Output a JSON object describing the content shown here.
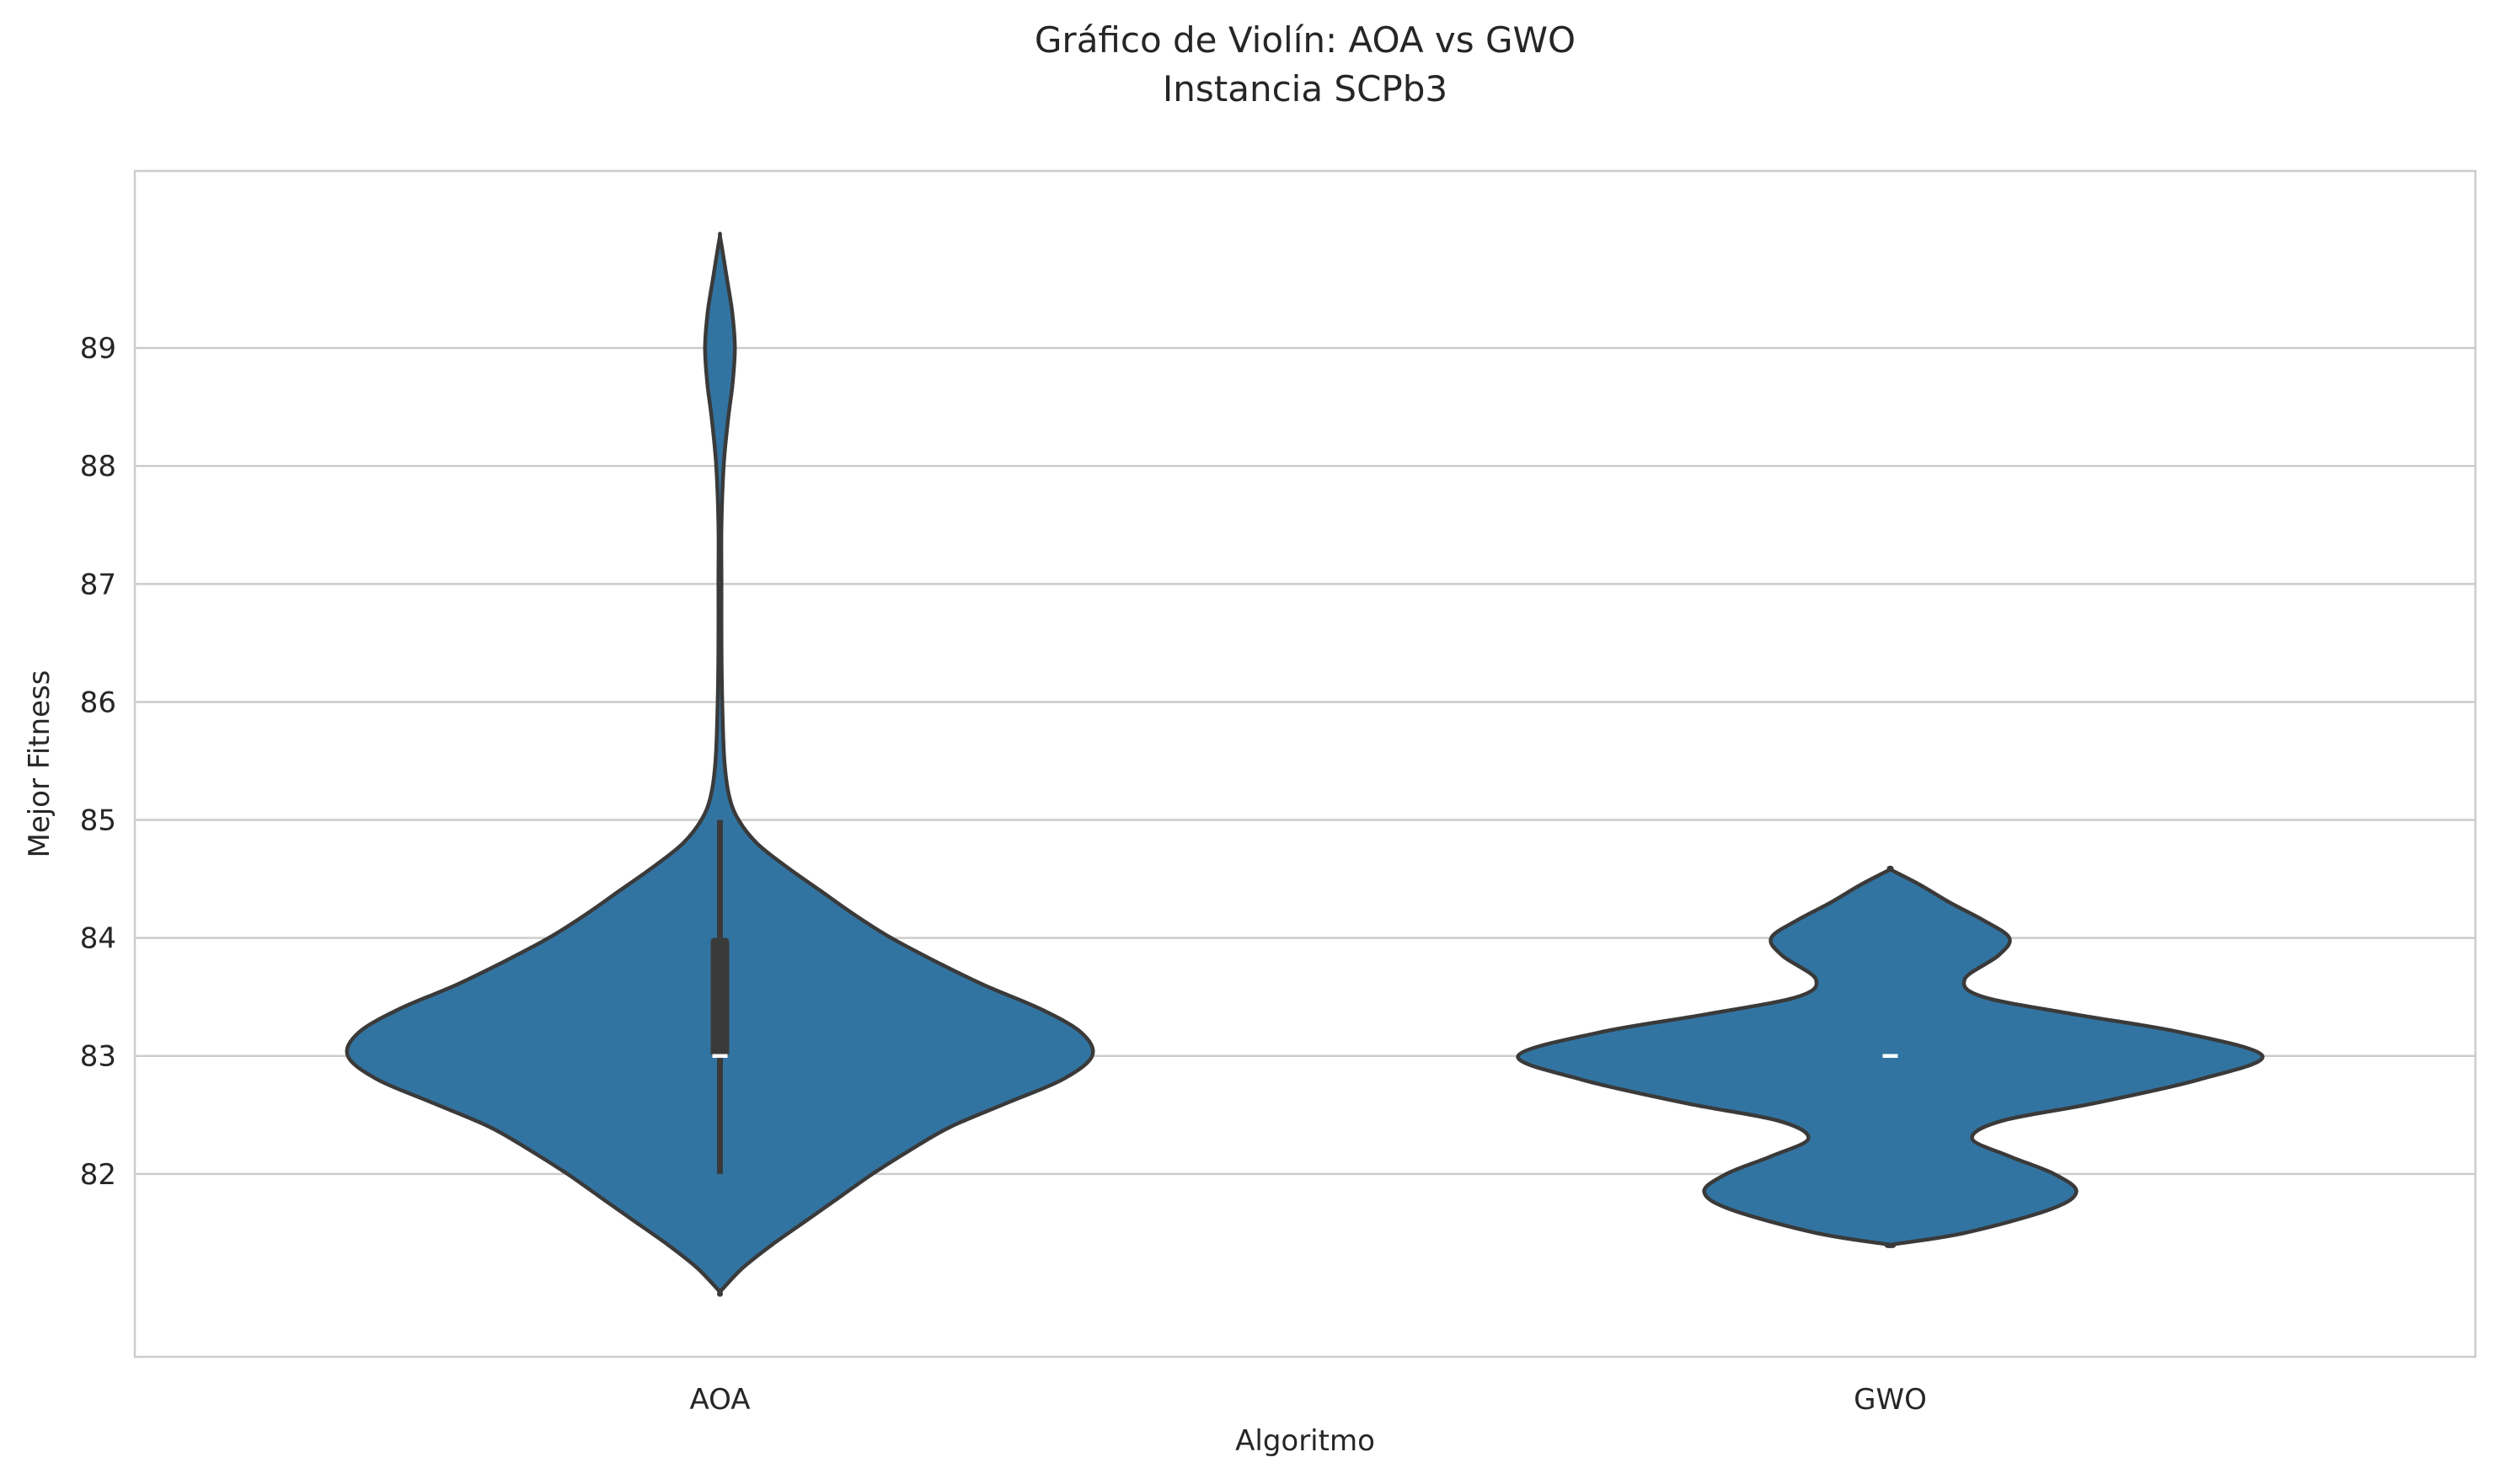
{
  "chart_data": {
    "type": "violin",
    "title": "Gráfico de Violín: AOA vs GWO",
    "subtitle": "Instancia SCPb3",
    "xlabel": "Algoritmo",
    "ylabel": "Mejor Fitness",
    "categories": [
      "AOA",
      "GWO"
    ],
    "ylim": [
      80.45,
      90.5
    ],
    "yticks": [
      82,
      83,
      84,
      85,
      86,
      87,
      88,
      89
    ],
    "grid": "horizontal",
    "color": "#3274a1",
    "edge_color": "#3a3a3a",
    "series": [
      {
        "category": "AOA",
        "min": 82,
        "q1": 83,
        "median": 83,
        "q3": 84,
        "max": 85,
        "density": [
          [
            81.0,
            0.0
          ],
          [
            81.2,
            0.06
          ],
          [
            81.4,
            0.14
          ],
          [
            81.6,
            0.23
          ],
          [
            81.8,
            0.32
          ],
          [
            82.0,
            0.41
          ],
          [
            82.2,
            0.51
          ],
          [
            82.4,
            0.62
          ],
          [
            82.6,
            0.77
          ],
          [
            82.8,
            0.92
          ],
          [
            83.0,
            1.0
          ],
          [
            83.2,
            0.97
          ],
          [
            83.4,
            0.86
          ],
          [
            83.6,
            0.71
          ],
          [
            83.8,
            0.58
          ],
          [
            84.0,
            0.46
          ],
          [
            84.2,
            0.36
          ],
          [
            84.4,
            0.27
          ],
          [
            84.6,
            0.18
          ],
          [
            84.8,
            0.1
          ],
          [
            85.0,
            0.05
          ],
          [
            85.2,
            0.025
          ],
          [
            85.5,
            0.012
          ],
          [
            86.0,
            0.006
          ],
          [
            86.5,
            0.004
          ],
          [
            87.0,
            0.004
          ],
          [
            87.5,
            0.004
          ],
          [
            88.0,
            0.01
          ],
          [
            88.4,
            0.022
          ],
          [
            88.7,
            0.034
          ],
          [
            89.0,
            0.04
          ],
          [
            89.3,
            0.033
          ],
          [
            89.6,
            0.018
          ],
          [
            89.8,
            0.008
          ],
          [
            89.95,
            0.0
          ]
        ]
      },
      {
        "category": "GWO",
        "min": 83,
        "q1": 83,
        "median": 83,
        "q3": 83,
        "max": 83,
        "density": [
          [
            81.4,
            0.0
          ],
          [
            81.5,
            0.2
          ],
          [
            81.7,
            0.43
          ],
          [
            81.85,
            0.5
          ],
          [
            82.0,
            0.44
          ],
          [
            82.15,
            0.32
          ],
          [
            82.3,
            0.22
          ],
          [
            82.45,
            0.3
          ],
          [
            82.6,
            0.55
          ],
          [
            82.8,
            0.83
          ],
          [
            83.0,
            1.0
          ],
          [
            83.2,
            0.78
          ],
          [
            83.35,
            0.5
          ],
          [
            83.5,
            0.25
          ],
          [
            83.65,
            0.2
          ],
          [
            83.85,
            0.29
          ],
          [
            84.0,
            0.32
          ],
          [
            84.15,
            0.25
          ],
          [
            84.3,
            0.16
          ],
          [
            84.45,
            0.08
          ],
          [
            84.58,
            0.0
          ]
        ]
      }
    ]
  }
}
